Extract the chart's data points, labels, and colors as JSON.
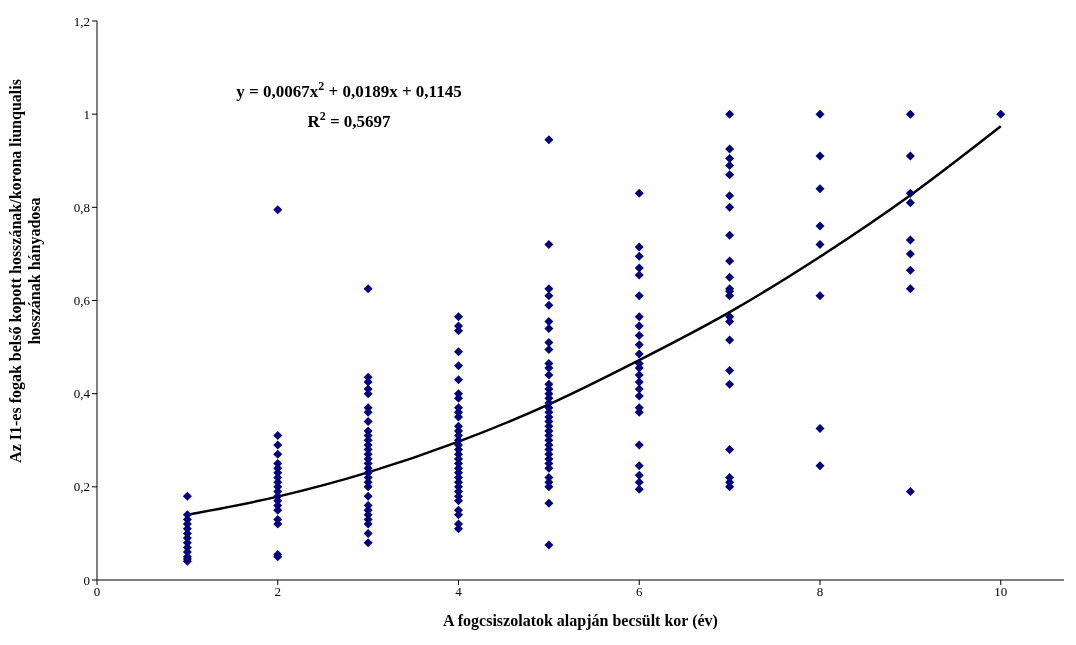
{
  "chart_data": {
    "type": "scatter",
    "xlabel": "A fogcsiszolatok alapján becsült kor (év)",
    "ylabel": "Az I1-es fogak belső kopott hosszának/korona liunqualis hosszának hányadosa",
    "xlim": [
      0,
      10.7
    ],
    "xticks": [
      0,
      2,
      4,
      6,
      8,
      10
    ],
    "ylim": [
      0,
      1.2
    ],
    "yticks": [
      0,
      {
        "value": 0.2,
        "label": "0,2"
      },
      {
        "value": 0.4,
        "label": "0,4"
      },
      {
        "value": 0.6,
        "label": "0,6"
      },
      {
        "value": 0.8,
        "label": "0,8"
      },
      1,
      {
        "value": 1.2,
        "label": "1,2"
      }
    ],
    "annotations": [
      "y = 0,0067x$^{2}$ + 0,0189x + 0,1145",
      "R$^{2}$ = 0,5697"
    ],
    "series": [
      {
        "color": "#000080",
        "marker": "diamond",
        "x": [
          1,
          1,
          1,
          1,
          1,
          1,
          1,
          1,
          1,
          1,
          1,
          1,
          1,
          2,
          2,
          2,
          2,
          2,
          2,
          2,
          2,
          2,
          2,
          2,
          2,
          2,
          2,
          2,
          2,
          2,
          2,
          2,
          3,
          3,
          3,
          3,
          3,
          3,
          3,
          3,
          3,
          3,
          3,
          3,
          3,
          3,
          3,
          3,
          3,
          3,
          3,
          3,
          3,
          3,
          3,
          3,
          3,
          3,
          3,
          3,
          3,
          4,
          4,
          4,
          4,
          4,
          4,
          4,
          4,
          4,
          4,
          4,
          4,
          4,
          4,
          4,
          4,
          4,
          4,
          4,
          4,
          4,
          4,
          4,
          4,
          4,
          4,
          4,
          4,
          4,
          4,
          4,
          4,
          5,
          5,
          5,
          5,
          5,
          5,
          5,
          5,
          5,
          5,
          5,
          5,
          5,
          5,
          5,
          5,
          5,
          5,
          5,
          5,
          5,
          5,
          5,
          5,
          5,
          5,
          5,
          5,
          5,
          5,
          5,
          5,
          5,
          5,
          5,
          5,
          6,
          6,
          6,
          6,
          6,
          6,
          6,
          6,
          6,
          6,
          6,
          6,
          6,
          6,
          6,
          6,
          6,
          6,
          6,
          6,
          6,
          6,
          6,
          6,
          7,
          7,
          7,
          7,
          7,
          7,
          7,
          7,
          7,
          7,
          7,
          7,
          7,
          7,
          7,
          7,
          7,
          7,
          7,
          7,
          7,
          7,
          8,
          8,
          8,
          8,
          8,
          8,
          8,
          8,
          9,
          9,
          9,
          9,
          9,
          9,
          9,
          9,
          9,
          10
        ],
        "values": [
          0.18,
          0.14,
          0.13,
          0.12,
          0.11,
          0.1,
          0.09,
          0.08,
          0.07,
          0.06,
          0.05,
          0.045,
          0.04,
          0.795,
          0.31,
          0.29,
          0.27,
          0.25,
          0.24,
          0.23,
          0.22,
          0.21,
          0.2,
          0.19,
          0.18,
          0.17,
          0.16,
          0.15,
          0.13,
          0.055,
          0.05,
          0.12,
          0.625,
          0.435,
          0.425,
          0.41,
          0.4,
          0.37,
          0.36,
          0.34,
          0.32,
          0.31,
          0.3,
          0.29,
          0.28,
          0.27,
          0.26,
          0.25,
          0.24,
          0.23,
          0.22,
          0.21,
          0.2,
          0.18,
          0.16,
          0.15,
          0.14,
          0.13,
          0.12,
          0.1,
          0.08,
          0.565,
          0.545,
          0.535,
          0.49,
          0.46,
          0.43,
          0.4,
          0.39,
          0.37,
          0.36,
          0.35,
          0.33,
          0.32,
          0.31,
          0.3,
          0.29,
          0.28,
          0.27,
          0.26,
          0.25,
          0.24,
          0.23,
          0.22,
          0.21,
          0.2,
          0.19,
          0.18,
          0.17,
          0.15,
          0.14,
          0.12,
          0.11,
          0.945,
          0.72,
          0.625,
          0.61,
          0.59,
          0.555,
          0.54,
          0.51,
          0.495,
          0.465,
          0.455,
          0.44,
          0.42,
          0.41,
          0.4,
          0.39,
          0.38,
          0.37,
          0.36,
          0.35,
          0.34,
          0.33,
          0.32,
          0.31,
          0.3,
          0.29,
          0.28,
          0.27,
          0.26,
          0.25,
          0.24,
          0.22,
          0.21,
          0.2,
          0.165,
          0.075,
          0.83,
          0.715,
          0.695,
          0.67,
          0.655,
          0.61,
          0.565,
          0.545,
          0.525,
          0.505,
          0.485,
          0.465,
          0.455,
          0.44,
          0.425,
          0.41,
          0.395,
          0.37,
          0.36,
          0.29,
          0.245,
          0.225,
          0.21,
          0.195,
          1,
          0.925,
          0.905,
          0.89,
          0.87,
          0.825,
          0.8,
          0.74,
          0.685,
          0.65,
          0.625,
          0.62,
          0.61,
          0.565,
          0.555,
          0.515,
          0.45,
          0.42,
          0.28,
          0.22,
          0.21,
          0.2,
          1,
          0.91,
          0.84,
          0.76,
          0.72,
          0.61,
          0.325,
          0.245,
          1,
          0.91,
          0.83,
          0.81,
          0.73,
          0.7,
          0.665,
          0.625,
          0.19,
          1
        ]
      },
      {
        "type": "line",
        "color": "#000000",
        "marker": "none",
        "line_style": "solid",
        "x": [
          1,
          2,
          3,
          4,
          5,
          6,
          7,
          8,
          9,
          10
        ],
        "values": [
          0.14,
          0.179,
          0.231,
          0.297,
          0.377,
          0.472,
          0.575,
          0.694,
          0.826,
          0.974
        ]
      }
    ]
  }
}
